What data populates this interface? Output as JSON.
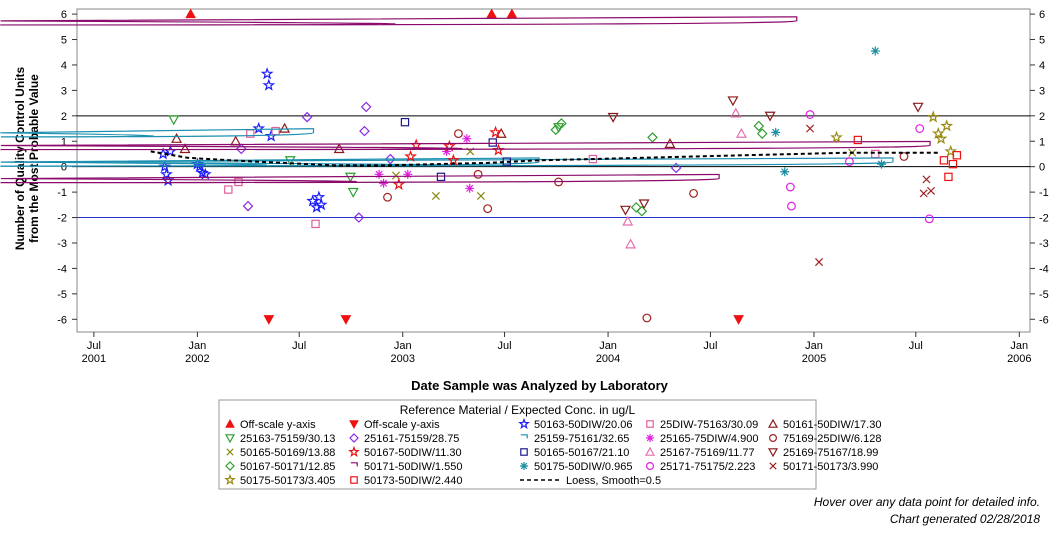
{
  "footnotes": {
    "hover": "Hover over any data point for detailed info.",
    "generated": "Chart generated 02/28/2018"
  },
  "chart_data": {
    "type": "scatter",
    "xlabel": "Date Sample was Analyzed by Laboratory",
    "ylabel_lines": [
      "Number of Quality Control Units",
      "from the Most Probable Value"
    ],
    "xlim": [
      "2001-06-01",
      "2006-01-20"
    ],
    "ylim": [
      -6.5,
      6.2
    ],
    "x_ticks": [
      {
        "date": "2001-07-01",
        "label": "Jul",
        "year": "2001"
      },
      {
        "date": "2002-01-01",
        "label": "Jan",
        "year": "2002"
      },
      {
        "date": "2002-07-01",
        "label": "Jul",
        "year": ""
      },
      {
        "date": "2003-01-01",
        "label": "Jan",
        "year": "2003"
      },
      {
        "date": "2003-07-01",
        "label": "Jul",
        "year": ""
      },
      {
        "date": "2004-01-01",
        "label": "Jan",
        "year": "2004"
      },
      {
        "date": "2004-07-01",
        "label": "Jul",
        "year": ""
      },
      {
        "date": "2005-01-01",
        "label": "Jan",
        "year": "2005"
      },
      {
        "date": "2005-07-01",
        "label": "Jul",
        "year": ""
      },
      {
        "date": "2006-01-01",
        "label": "Jan",
        "year": "2006"
      }
    ],
    "y_ticks": [
      6,
      5,
      4,
      3,
      2,
      1,
      0,
      -1,
      -2,
      -3,
      -4,
      -5,
      -6
    ],
    "reference_lines": [
      {
        "y": 2,
        "color": "#000000"
      },
      {
        "y": 0,
        "color": "#000000"
      },
      {
        "y": -2,
        "color": "#2233cc"
      }
    ],
    "legend": {
      "title": "Reference Material / Expected Conc. in ug/L",
      "placement": "bottom",
      "entries": [
        {
          "label": "Off-scale y-axis",
          "marker": "triangle-up-filled",
          "color": "#ee1111"
        },
        {
          "label": "Off-scale y-axis",
          "marker": "triangle-down-filled",
          "color": "#ee1111"
        },
        {
          "label": "50163-50DIW/20.06",
          "marker": "star",
          "color": "#1a1aff"
        },
        {
          "label": "25DIW-75163/30.09",
          "marker": "square",
          "color": "#e35d9a"
        },
        {
          "label": "50161-50DIW/17.30",
          "marker": "triangle-up",
          "color": "#8b1a1a"
        },
        {
          "label": "25163-75159/30.13",
          "marker": "triangle-down",
          "color": "#2e9e2e"
        },
        {
          "label": "25161-75159/28.75",
          "marker": "diamond",
          "color": "#8a2be2"
        },
        {
          "label": "25159-75161/32.65",
          "marker": "shield",
          "color": "#1a8fb0"
        },
        {
          "label": "25165-75DIW/4.900",
          "marker": "asterisk",
          "color": "#e020e0"
        },
        {
          "label": "75169-25DIW/6.128",
          "marker": "circle",
          "color": "#a02020"
        },
        {
          "label": "50165-50169/13.88",
          "marker": "x",
          "color": "#8a8a10"
        },
        {
          "label": "50167-50DIW/11.30",
          "marker": "star",
          "color": "#ee1111"
        },
        {
          "label": "50165-50167/21.10",
          "marker": "square",
          "color": "#1a1a8a"
        },
        {
          "label": "25167-75169/11.77",
          "marker": "triangle-up",
          "color": "#e56fb0"
        },
        {
          "label": "25169-75167/18.99",
          "marker": "triangle-down",
          "color": "#8b1a1a"
        },
        {
          "label": "50167-50171/12.85",
          "marker": "diamond",
          "color": "#2e9e2e"
        },
        {
          "label": "50171-50DIW/1.550",
          "marker": "shield",
          "color": "#8b0a6b"
        },
        {
          "label": "50175-50DIW/0.965",
          "marker": "asterisk",
          "color": "#1a8fa0"
        },
        {
          "label": "25171-75175/2.223",
          "marker": "circle",
          "color": "#e020e0"
        },
        {
          "label": "50171-50173/3.990",
          "marker": "x",
          "color": "#a02020"
        },
        {
          "label": "50175-50173/3.405",
          "marker": "star",
          "color": "#9a8a10"
        },
        {
          "label": "50173-50DIW/2.440",
          "marker": "square",
          "color": "#ee1111"
        },
        {
          "label": "Loess, Smooth=0.5",
          "marker": "dash-line",
          "color": "#000000"
        }
      ]
    },
    "loess": [
      {
        "x": "2001-10-10",
        "y": 0.6
      },
      {
        "x": "2001-12-15",
        "y": 0.35
      },
      {
        "x": "2002-03-01",
        "y": 0.25
      },
      {
        "x": "2002-06-01",
        "y": 0.15
      },
      {
        "x": "2002-09-01",
        "y": 0.05
      },
      {
        "x": "2002-12-01",
        "y": 0.05
      },
      {
        "x": "2003-03-01",
        "y": 0.1
      },
      {
        "x": "2003-06-01",
        "y": 0.15
      },
      {
        "x": "2003-09-01",
        "y": 0.25
      },
      {
        "x": "2003-12-01",
        "y": 0.3
      },
      {
        "x": "2004-03-01",
        "y": 0.35
      },
      {
        "x": "2004-06-01",
        "y": 0.4
      },
      {
        "x": "2004-09-01",
        "y": 0.45
      },
      {
        "x": "2004-12-01",
        "y": 0.5
      },
      {
        "x": "2005-03-01",
        "y": 0.55
      },
      {
        "x": "2005-06-01",
        "y": 0.55
      },
      {
        "x": "2005-08-10",
        "y": 0.55
      }
    ],
    "series": [
      {
        "name": "Off-scale y-axis",
        "marker": "triangle-up-filled",
        "color": "#ee1111",
        "points": [
          {
            "x": "2001-12-20",
            "y": 6
          },
          {
            "x": "2003-06-08",
            "y": 6
          },
          {
            "x": "2003-07-14",
            "y": 6
          }
        ]
      },
      {
        "name": "Off-scale y-axis",
        "marker": "triangle-down-filled",
        "color": "#ee1111",
        "points": [
          {
            "x": "2002-05-08",
            "y": -6
          },
          {
            "x": "2002-09-22",
            "y": -6
          },
          {
            "x": "2004-08-20",
            "y": -6
          }
        ]
      },
      {
        "name": "50163-50DIW/20.06",
        "marker": "star",
        "color": "#1a1aff",
        "points": [
          {
            "x": "2001-11-01",
            "y": 0.5
          },
          {
            "x": "2001-11-04",
            "y": 0.0
          },
          {
            "x": "2001-11-07",
            "y": -0.3
          },
          {
            "x": "2001-11-10",
            "y": -0.55
          },
          {
            "x": "2001-11-14",
            "y": 0.6
          },
          {
            "x": "2002-01-01",
            "y": 0.1
          },
          {
            "x": "2002-01-05",
            "y": 0.0
          },
          {
            "x": "2002-01-10",
            "y": -0.25
          },
          {
            "x": "2002-01-15",
            "y": -0.3
          },
          {
            "x": "2002-04-20",
            "y": 1.5
          },
          {
            "x": "2002-05-05",
            "y": 3.65
          },
          {
            "x": "2002-05-08",
            "y": 3.2
          },
          {
            "x": "2002-05-12",
            "y": 1.2
          },
          {
            "x": "2002-07-25",
            "y": -1.35
          },
          {
            "x": "2002-08-01",
            "y": -1.6
          },
          {
            "x": "2002-08-05",
            "y": -1.2
          },
          {
            "x": "2002-08-09",
            "y": -1.5
          }
        ]
      },
      {
        "name": "25DIW-75163/30.09",
        "marker": "square",
        "color": "#e35d9a",
        "points": [
          {
            "x": "2002-02-25",
            "y": -0.9
          },
          {
            "x": "2002-03-15",
            "y": -0.6
          },
          {
            "x": "2002-04-05",
            "y": 1.3
          },
          {
            "x": "2002-05-20",
            "y": 1.4
          },
          {
            "x": "2002-07-30",
            "y": -2.25
          },
          {
            "x": "2003-12-05",
            "y": 0.3
          },
          {
            "x": "2005-04-20",
            "y": 0.5
          }
        ]
      },
      {
        "name": "50161-50DIW/17.30",
        "marker": "triangle-up",
        "color": "#8b1a1a",
        "points": [
          {
            "x": "2001-11-25",
            "y": 1.1
          },
          {
            "x": "2001-12-10",
            "y": 0.7
          },
          {
            "x": "2002-03-10",
            "y": 1.0
          },
          {
            "x": "2002-06-05",
            "y": 1.5
          },
          {
            "x": "2002-09-10",
            "y": 0.7
          },
          {
            "x": "2003-06-25",
            "y": 1.3
          },
          {
            "x": "2004-04-20",
            "y": 0.9
          }
        ]
      },
      {
        "name": "25163-75159/30.13",
        "marker": "triangle-down",
        "color": "#2e9e2e",
        "points": [
          {
            "x": "2001-11-20",
            "y": 1.85
          },
          {
            "x": "2002-06-15",
            "y": 0.25
          },
          {
            "x": "2002-09-30",
            "y": -0.4
          },
          {
            "x": "2002-10-05",
            "y": -1.0
          },
          {
            "x": "2003-10-05",
            "y": 1.55
          }
        ]
      },
      {
        "name": "25161-75159/28.75",
        "marker": "diamond",
        "color": "#8a2be2",
        "points": [
          {
            "x": "2002-03-20",
            "y": 0.7
          },
          {
            "x": "2002-04-01",
            "y": -1.55
          },
          {
            "x": "2002-07-15",
            "y": 1.95
          },
          {
            "x": "2002-10-15",
            "y": -2.0
          },
          {
            "x": "2002-10-25",
            "y": 1.4
          },
          {
            "x": "2002-10-28",
            "y": 2.35
          },
          {
            "x": "2002-12-10",
            "y": 0.3
          },
          {
            "x": "2004-05-01",
            "y": -0.05
          }
        ]
      },
      {
        "name": "25159-75161/32.65",
        "marker": "shield",
        "color": "#1a8fb0",
        "points": [
          {
            "x": "2002-07-20",
            "y": 1.35
          },
          {
            "x": "2003-08-25",
            "y": 0.2
          },
          {
            "x": "2005-05-15",
            "y": 0.2
          }
        ]
      },
      {
        "name": "25165-75DIW/4.900",
        "marker": "asterisk",
        "color": "#e020e0",
        "points": [
          {
            "x": "2002-11-20",
            "y": -0.3
          },
          {
            "x": "2002-11-28",
            "y": -0.65
          },
          {
            "x": "2003-01-10",
            "y": -0.3
          },
          {
            "x": "2003-03-20",
            "y": 0.6
          },
          {
            "x": "2003-04-25",
            "y": 1.1
          },
          {
            "x": "2003-04-30",
            "y": -0.85
          }
        ]
      },
      {
        "name": "75169-25DIW/6.128",
        "marker": "circle",
        "color": "#a02020",
        "points": [
          {
            "x": "2002-12-05",
            "y": -1.2
          },
          {
            "x": "2003-04-10",
            "y": 1.3
          },
          {
            "x": "2003-05-15",
            "y": -0.3
          },
          {
            "x": "2003-06-01",
            "y": -1.65
          },
          {
            "x": "2003-10-05",
            "y": -0.6
          },
          {
            "x": "2004-03-10",
            "y": -5.95
          },
          {
            "x": "2004-06-01",
            "y": -1.05
          },
          {
            "x": "2005-06-10",
            "y": 0.4
          }
        ]
      },
      {
        "name": "50165-50169/13.88",
        "marker": "x",
        "color": "#8a8a10",
        "points": [
          {
            "x": "2002-12-20",
            "y": -0.35
          },
          {
            "x": "2003-03-01",
            "y": -1.15
          },
          {
            "x": "2003-05-01",
            "y": 0.6
          },
          {
            "x": "2003-05-20",
            "y": -1.15
          },
          {
            "x": "2005-03-10",
            "y": 0.55
          }
        ]
      },
      {
        "name": "50167-50DIW/11.30",
        "marker": "star",
        "color": "#ee1111",
        "points": [
          {
            "x": "2002-12-25",
            "y": -0.7
          },
          {
            "x": "2003-01-15",
            "y": 0.4
          },
          {
            "x": "2003-01-25",
            "y": 0.85
          },
          {
            "x": "2003-03-25",
            "y": 0.8
          },
          {
            "x": "2003-04-01",
            "y": 0.25
          },
          {
            "x": "2003-06-15",
            "y": 1.35
          },
          {
            "x": "2003-06-20",
            "y": 0.65
          }
        ]
      },
      {
        "name": "50165-50167/21.10",
        "marker": "square",
        "color": "#1a1a8a",
        "points": [
          {
            "x": "2003-01-05",
            "y": 1.75
          },
          {
            "x": "2003-03-10",
            "y": -0.4
          },
          {
            "x": "2003-06-10",
            "y": 0.95
          },
          {
            "x": "2003-07-05",
            "y": 0.2
          }
        ]
      },
      {
        "name": "25167-75169/11.77",
        "marker": "triangle-up",
        "color": "#e56fb0",
        "points": [
          {
            "x": "2004-02-05",
            "y": -2.15
          },
          {
            "x": "2004-02-10",
            "y": -3.05
          },
          {
            "x": "2004-08-15",
            "y": 2.1
          },
          {
            "x": "2004-08-25",
            "y": 1.3
          }
        ]
      },
      {
        "name": "25169-75167/18.99",
        "marker": "triangle-down",
        "color": "#8b1a1a",
        "points": [
          {
            "x": "2004-01-10",
            "y": 1.95
          },
          {
            "x": "2004-02-01",
            "y": -1.7
          },
          {
            "x": "2004-03-05",
            "y": -1.45
          },
          {
            "x": "2004-08-10",
            "y": 2.6
          },
          {
            "x": "2004-10-15",
            "y": 2.0
          },
          {
            "x": "2005-07-05",
            "y": 2.35
          }
        ]
      },
      {
        "name": "50167-50171/12.85",
        "marker": "diamond",
        "color": "#2e9e2e",
        "points": [
          {
            "x": "2003-09-30",
            "y": 1.45
          },
          {
            "x": "2003-10-10",
            "y": 1.7
          },
          {
            "x": "2004-02-20",
            "y": -1.6
          },
          {
            "x": "2004-03-01",
            "y": -1.75
          },
          {
            "x": "2004-03-20",
            "y": 1.15
          },
          {
            "x": "2004-09-25",
            "y": 1.6
          },
          {
            "x": "2004-10-01",
            "y": 1.3
          }
        ]
      },
      {
        "name": "50171-50DIW/1.550",
        "marker": "shield",
        "color": "#8b0a6b",
        "points": [
          {
            "x": "2004-11-25",
            "y": 5.75
          },
          {
            "x": "2004-07-10",
            "y": -0.45
          },
          {
            "x": "2005-07-20",
            "y": 0.85
          }
        ]
      },
      {
        "name": "50175-50DIW/0.965",
        "marker": "asterisk",
        "color": "#1a8fa0",
        "points": [
          {
            "x": "2005-04-20",
            "y": 4.55
          },
          {
            "x": "2004-10-25",
            "y": 1.35
          },
          {
            "x": "2004-11-10",
            "y": -0.2
          },
          {
            "x": "2005-05-01",
            "y": 0.1
          }
        ]
      },
      {
        "name": "25171-75175/2.223",
        "marker": "circle",
        "color": "#e020e0",
        "points": [
          {
            "x": "2004-11-20",
            "y": -0.8
          },
          {
            "x": "2004-11-22",
            "y": -1.55
          },
          {
            "x": "2004-12-25",
            "y": 2.05
          },
          {
            "x": "2005-07-25",
            "y": -2.05
          },
          {
            "x": "2005-07-08",
            "y": 1.5
          },
          {
            "x": "2005-03-05",
            "y": 0.2
          }
        ]
      },
      {
        "name": "50171-50173/3.990",
        "marker": "x",
        "color": "#a02020",
        "points": [
          {
            "x": "2005-01-10",
            "y": -3.75
          },
          {
            "x": "2005-07-15",
            "y": -1.05
          },
          {
            "x": "2005-07-20",
            "y": -0.5
          },
          {
            "x": "2005-07-28",
            "y": -0.95
          },
          {
            "x": "2004-12-25",
            "y": 1.5
          }
        ]
      },
      {
        "name": "50175-50173/3.405",
        "marker": "star",
        "color": "#9a8a10",
        "points": [
          {
            "x": "2005-02-10",
            "y": 1.15
          },
          {
            "x": "2005-08-01",
            "y": 1.95
          },
          {
            "x": "2005-08-10",
            "y": 1.3
          },
          {
            "x": "2005-08-15",
            "y": 1.1
          },
          {
            "x": "2005-08-25",
            "y": 1.6
          },
          {
            "x": "2005-09-01",
            "y": 0.6
          }
        ]
      },
      {
        "name": "50173-50DIW/2.440",
        "marker": "square",
        "color": "#ee1111",
        "points": [
          {
            "x": "2005-03-20",
            "y": 1.05
          },
          {
            "x": "2005-08-20",
            "y": 0.25
          },
          {
            "x": "2005-08-28",
            "y": -0.4
          },
          {
            "x": "2005-09-05",
            "y": 0.1
          },
          {
            "x": "2005-09-12",
            "y": 0.45
          }
        ]
      }
    ]
  }
}
